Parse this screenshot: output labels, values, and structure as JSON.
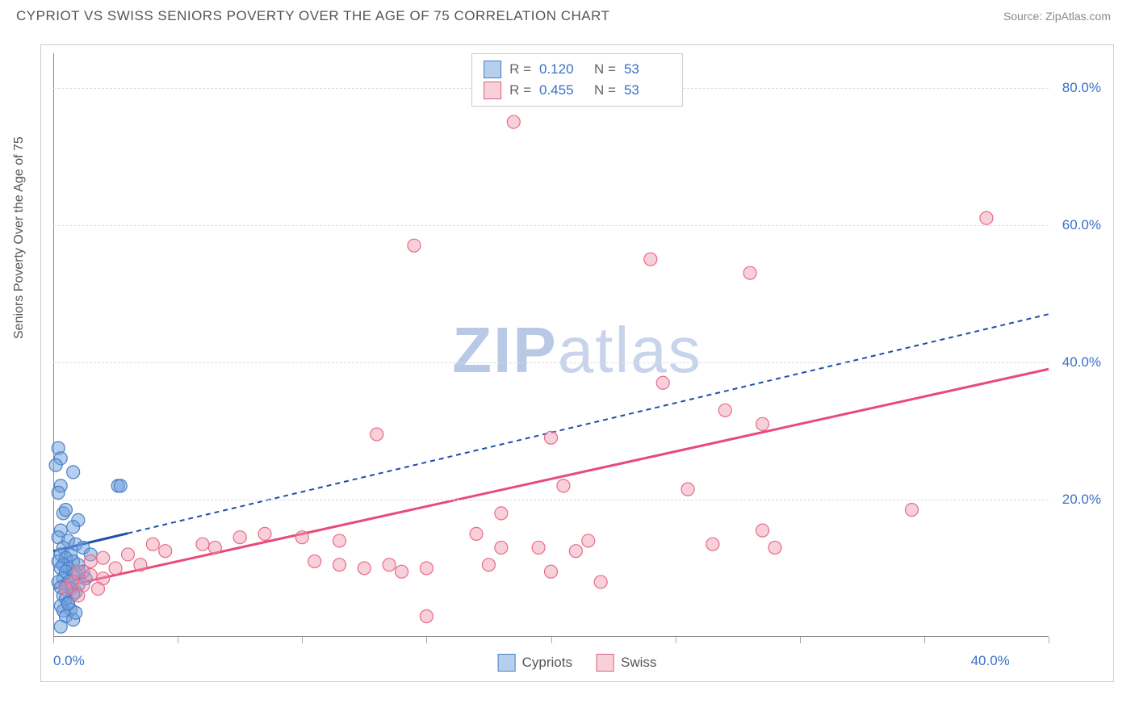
{
  "header": {
    "title": "CYPRIOT VS SWISS SENIORS POVERTY OVER THE AGE OF 75 CORRELATION CHART",
    "source": "Source: ZipAtlas.com"
  },
  "chart": {
    "type": "scatter",
    "ylabel": "Seniors Poverty Over the Age of 75",
    "watermark_a": "ZIP",
    "watermark_b": "atlas",
    "xlim": [
      0,
      40
    ],
    "ylim": [
      0,
      85
    ],
    "x_ticks": [
      0,
      5,
      10,
      15,
      20,
      25,
      30,
      35,
      40
    ],
    "x_tick_labels": [
      "0.0%",
      "",
      "",
      "",
      "",
      "",
      "",
      "",
      "40.0%"
    ],
    "y_ticks": [
      20,
      40,
      60,
      80
    ],
    "y_tick_labels": [
      "20.0%",
      "40.0%",
      "60.0%",
      "80.0%"
    ],
    "background_color": "#ffffff",
    "grid_color": "#dddddd",
    "series": [
      {
        "name": "Cypriots",
        "color_fill": "rgba(108,160,220,0.5)",
        "color_stroke": "#4a7fc9",
        "trend_color": "#1f4fa8",
        "trend_dash": "6,5",
        "trend_extrap_dash": "6,5",
        "trend_solid_until_x": 3.0,
        "r": "0.120",
        "n": "53",
        "trend_y0": 12.5,
        "trend_y40": 47.0,
        "points": [
          [
            0.2,
            27.5
          ],
          [
            0.3,
            26.0
          ],
          [
            0.1,
            25.0
          ],
          [
            0.8,
            24.0
          ],
          [
            0.3,
            22.0
          ],
          [
            0.2,
            21.0
          ],
          [
            2.6,
            22.0
          ],
          [
            2.7,
            22.0
          ],
          [
            0.4,
            18.0
          ],
          [
            0.5,
            18.5
          ],
          [
            1.0,
            17.0
          ],
          [
            0.3,
            15.5
          ],
          [
            0.8,
            16.0
          ],
          [
            0.2,
            14.5
          ],
          [
            0.6,
            14.0
          ],
          [
            0.4,
            13.0
          ],
          [
            0.9,
            13.5
          ],
          [
            1.2,
            13.0
          ],
          [
            0.3,
            12.0
          ],
          [
            0.7,
            12.0
          ],
          [
            0.5,
            11.5
          ],
          [
            1.5,
            12.0
          ],
          [
            0.2,
            11.0
          ],
          [
            0.8,
            11.0
          ],
          [
            0.4,
            10.5
          ],
          [
            1.0,
            10.5
          ],
          [
            0.6,
            10.0
          ],
          [
            0.3,
            10.0
          ],
          [
            1.2,
            9.5
          ],
          [
            0.5,
            9.5
          ],
          [
            0.8,
            9.0
          ],
          [
            0.9,
            9.2
          ],
          [
            0.4,
            8.5
          ],
          [
            1.3,
            8.5
          ],
          [
            0.6,
            8.0
          ],
          [
            0.2,
            8.0
          ],
          [
            0.5,
            7.5
          ],
          [
            1.0,
            7.5
          ],
          [
            0.7,
            7.0
          ],
          [
            0.3,
            7.2
          ],
          [
            0.9,
            6.5
          ],
          [
            0.4,
            6.0
          ],
          [
            0.8,
            6.2
          ],
          [
            0.5,
            5.5
          ],
          [
            0.6,
            5.0
          ],
          [
            0.3,
            4.5
          ],
          [
            0.7,
            4.0
          ],
          [
            0.4,
            3.8
          ],
          [
            0.5,
            3.0
          ],
          [
            0.8,
            2.5
          ],
          [
            0.3,
            1.5
          ],
          [
            0.9,
            3.5
          ],
          [
            0.6,
            4.8
          ]
        ]
      },
      {
        "name": "Swiss",
        "color_fill": "rgba(240,150,170,0.45)",
        "color_stroke": "#e86a8a",
        "trend_color": "#e84a7a",
        "trend_dash": "none",
        "trend_extrap_dash": "none",
        "trend_solid_until_x": 40,
        "r": "0.455",
        "n": "53",
        "trend_y0": 7.0,
        "trend_y40": 39.0,
        "points": [
          [
            18.5,
            75.0
          ],
          [
            37.5,
            61.0
          ],
          [
            14.5,
            57.0
          ],
          [
            24.0,
            55.0
          ],
          [
            28.0,
            53.0
          ],
          [
            24.5,
            37.0
          ],
          [
            27.0,
            33.0
          ],
          [
            28.5,
            31.0
          ],
          [
            13.0,
            29.5
          ],
          [
            20.0,
            29.0
          ],
          [
            20.5,
            22.0
          ],
          [
            25.5,
            21.5
          ],
          [
            34.5,
            18.5
          ],
          [
            18.0,
            18.0
          ],
          [
            28.5,
            15.5
          ],
          [
            17.0,
            15.0
          ],
          [
            21.5,
            14.0
          ],
          [
            26.5,
            13.5
          ],
          [
            29.0,
            13.0
          ],
          [
            8.5,
            15.0
          ],
          [
            10.0,
            14.5
          ],
          [
            11.5,
            14.0
          ],
          [
            18.0,
            13.0
          ],
          [
            19.5,
            13.0
          ],
          [
            21.0,
            12.5
          ],
          [
            6.0,
            13.5
          ],
          [
            6.5,
            13.0
          ],
          [
            7.5,
            14.5
          ],
          [
            4.0,
            13.5
          ],
          [
            4.5,
            12.5
          ],
          [
            3.0,
            12.0
          ],
          [
            2.0,
            11.5
          ],
          [
            1.5,
            11.0
          ],
          [
            2.5,
            10.0
          ],
          [
            3.5,
            10.5
          ],
          [
            1.0,
            9.5
          ],
          [
            1.5,
            9.0
          ],
          [
            2.0,
            8.5
          ],
          [
            0.8,
            8.0
          ],
          [
            1.2,
            7.5
          ],
          [
            0.5,
            7.0
          ],
          [
            1.8,
            7.0
          ],
          [
            10.5,
            11.0
          ],
          [
            11.5,
            10.5
          ],
          [
            12.5,
            10.0
          ],
          [
            13.5,
            10.5
          ],
          [
            14.0,
            9.5
          ],
          [
            15.0,
            10.0
          ],
          [
            17.5,
            10.5
          ],
          [
            20.0,
            9.5
          ],
          [
            22.0,
            8.0
          ],
          [
            15.0,
            3.0
          ],
          [
            1.0,
            6.0
          ]
        ]
      }
    ],
    "legend_bottom": [
      "Cypriots",
      "Swiss"
    ]
  }
}
